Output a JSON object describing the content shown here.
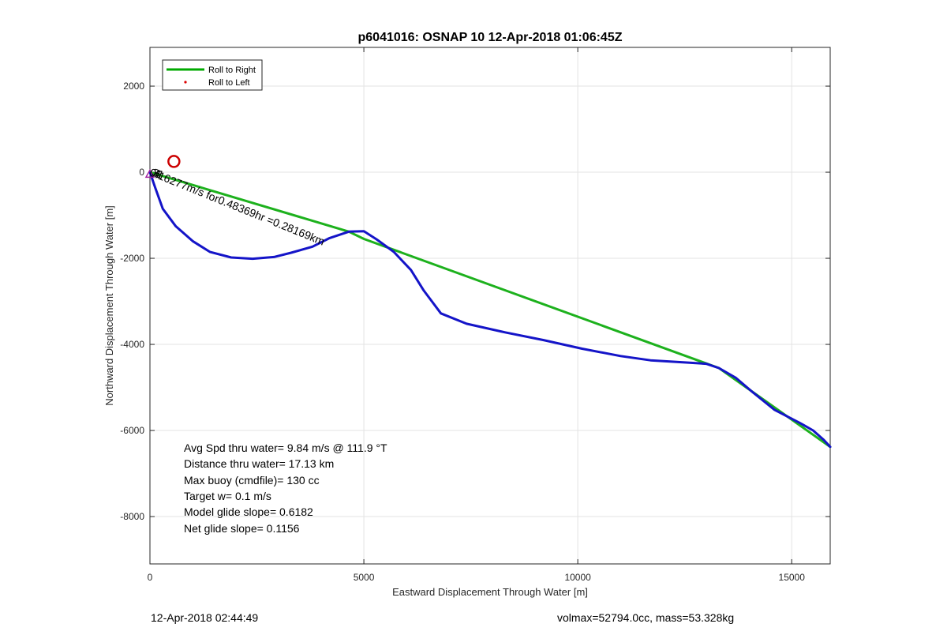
{
  "chart_data": {
    "type": "line",
    "title": "p6041016: OSNAP 10 12-Apr-2018 01:06:45Z",
    "xlabel": "Eastward Displacement Through Water [m]",
    "ylabel": "Northward Displacement Through Water [m]",
    "xlim": [
      0,
      15900
    ],
    "ylim": [
      -9100,
      2900
    ],
    "xticks": [
      0,
      5000,
      10000,
      15000
    ],
    "yticks": [
      2000,
      0,
      -2000,
      -4000,
      -6000,
      -8000
    ],
    "grid": true,
    "legend_position": "top-left",
    "legend": [
      {
        "label": "Roll to Right",
        "color": "#00aa00",
        "style": "line"
      },
      {
        "label": "Roll to Left",
        "color": "#dd0000",
        "style": "dot"
      }
    ],
    "series": [
      {
        "name": "Roll to Right",
        "color": "#1db11d",
        "x": [
          0,
          4650,
          5000,
          13300,
          15900
        ],
        "y": [
          0,
          -1380,
          -1550,
          -4550,
          -6380
        ]
      },
      {
        "color": "#1414c8",
        "x": [
          0,
          120,
          300,
          600,
          1000,
          1400,
          1900,
          2400,
          2900,
          3300,
          3800,
          4200,
          4650,
          5000,
          5300,
          5700,
          6100,
          6400,
          6800,
          7400,
          8300,
          9200,
          10100,
          11000,
          11700,
          12500,
          13000,
          13300,
          13700,
          14100,
          14600,
          15200,
          15500,
          15750,
          15900
        ],
        "y": [
          0,
          -350,
          -850,
          -1250,
          -1600,
          -1850,
          -1980,
          -2010,
          -1970,
          -1870,
          -1730,
          -1530,
          -1380,
          -1370,
          -1560,
          -1850,
          -2270,
          -2750,
          -3280,
          -3520,
          -3720,
          -3900,
          -4100,
          -4270,
          -4370,
          -4420,
          -4450,
          -4550,
          -4780,
          -5120,
          -5520,
          -5830,
          -6000,
          -6220,
          -6380
        ]
      }
    ],
    "markers": [
      {
        "type": "circle",
        "color": "#cc0000",
        "x": 560,
        "y": 250
      },
      {
        "type": "triangle",
        "color": "#a020a0",
        "x": 0,
        "y": -60
      }
    ],
    "annotations": [
      {
        "text": "0.16277m/s for0.48369hr =0.28169km",
        "x": 0,
        "y": 0,
        "angle": 22
      },
      {
        "text": "3",
        "x": 60,
        "y": 0,
        "angle": 22
      },
      {
        "text": "4",
        "x": 100,
        "y": -20,
        "angle": 22
      },
      {
        "text": "5",
        "x": 130,
        "y": -30,
        "angle": 22
      },
      {
        "text": "1",
        "x": 170,
        "y": -40,
        "angle": 22
      }
    ],
    "stats_lines": [
      "Avg Spd thru water=  9.84 m/s @ 111.9 °T",
      "Distance thru water= 17.13 km",
      "Max buoy (cmdfile)= 130 cc",
      "Target w= 0.1 m/s",
      "Model glide slope= 0.6182",
      "Net glide slope= 0.1156"
    ]
  },
  "footer": {
    "timestamp": "12-Apr-2018 02:44:49",
    "vol_mass": "volmax=52794.0cc, mass=53.328kg"
  }
}
